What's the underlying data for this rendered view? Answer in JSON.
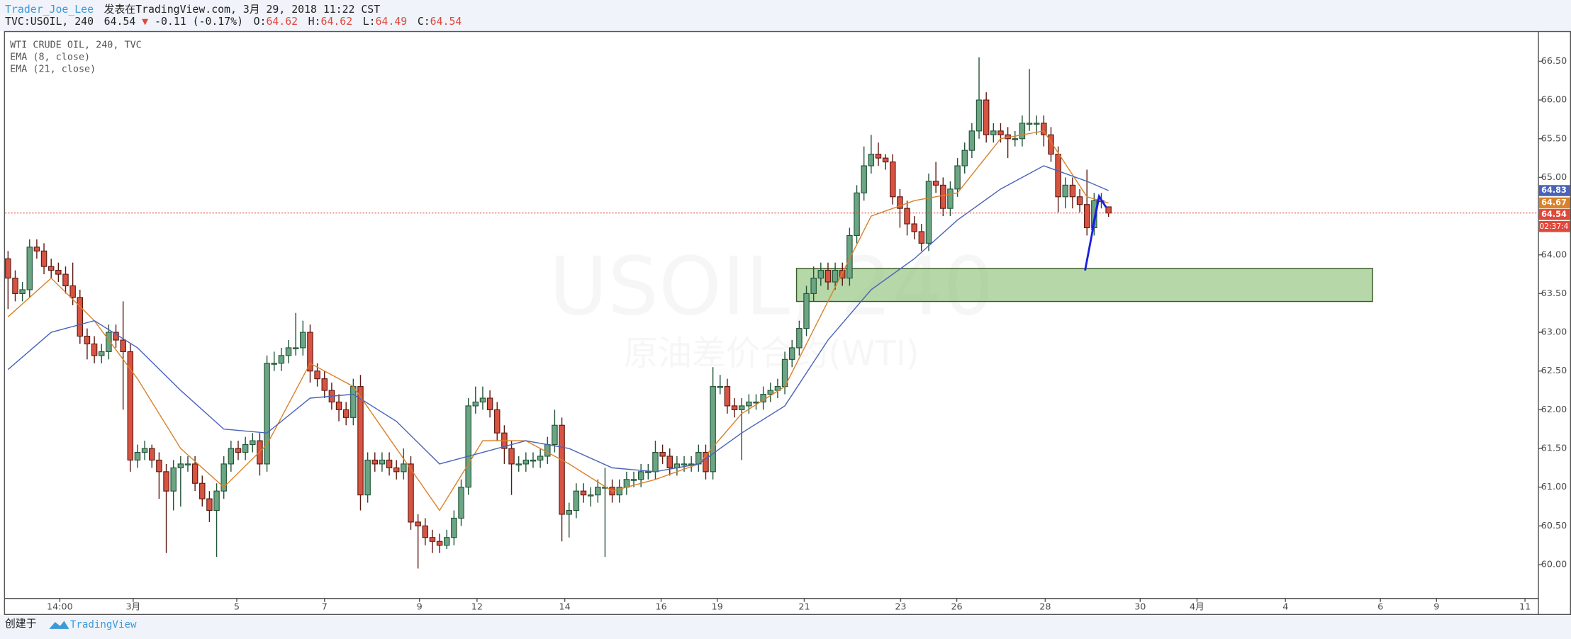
{
  "header": {
    "author": "Trader_Joe_Lee",
    "published": "发表在TradingView.com, 3月 29, 2018 11:22 CST",
    "symbol": "TVC:USOIL, 240",
    "arrow": "▼",
    "change": "-0.11 (-0.17%)",
    "o": "O:",
    "h": "H:",
    "l": "L:",
    "c": "C:"
  },
  "watermark": [
    "USOIL, 240",
    "原油差价合约(WTI)"
  ],
  "footer": {
    "created": "创建于",
    "brand": "TradingView"
  },
  "chart_data": {
    "type": "candlestick",
    "title": "WTI CRUDE OIL, 240, TVC",
    "countdown": "02:37:4",
    "up_color": "#6ba583",
    "up_edge": "#225437",
    "down_color": "#d75442",
    "down_edge": "#5b1a13",
    "last_color": "#e0483a",
    "grid": false,
    "open": [
      63.95,
      63.7,
      63.5,
      63.55,
      64.1,
      64.05,
      63.85,
      63.8,
      63.75,
      63.6,
      63.45,
      62.95,
      62.85,
      62.7,
      62.75,
      63.0,
      62.9,
      62.75,
      61.35,
      61.45,
      61.5,
      61.35,
      61.2,
      60.95,
      61.25,
      61.3,
      61.3,
      61.05,
      60.85,
      60.7,
      60.95,
      61.3,
      61.5,
      61.45,
      61.55,
      61.6,
      61.3,
      62.6,
      62.6,
      62.7,
      62.8,
      62.8,
      63.0,
      62.5,
      62.4,
      62.25,
      62.1,
      62.0,
      61.9,
      62.3,
      60.9,
      61.35,
      61.3,
      61.35,
      61.25,
      61.2,
      61.3,
      60.55,
      60.5,
      60.35,
      60.3,
      60.25,
      60.35,
      60.6,
      61.0,
      62.05,
      62.1,
      62.15,
      62.0,
      61.7,
      61.5,
      61.3,
      61.3,
      61.35,
      61.35,
      61.4,
      61.55,
      61.8,
      60.65,
      60.7,
      60.95,
      60.9,
      60.9,
      61.0,
      61.0,
      60.9,
      61.0,
      61.1,
      61.1,
      61.2,
      61.2,
      61.45,
      61.4,
      61.25,
      61.3,
      61.3,
      61.3,
      61.45,
      61.2,
      62.3,
      62.3,
      62.05,
      62.0,
      62.05,
      62.1,
      62.1,
      62.2,
      62.25,
      62.3,
      62.65,
      62.8,
      63.05,
      63.5,
      63.7,
      63.8,
      63.65,
      63.8,
      63.7,
      64.25,
      64.8,
      65.15,
      65.3,
      65.25,
      65.2,
      64.75,
      64.6,
      64.4,
      64.3,
      64.15,
      64.95,
      64.9,
      64.6,
      64.85,
      65.15,
      65.35,
      65.6,
      66.0,
      65.55,
      65.6,
      65.55,
      65.5,
      65.5,
      65.7,
      65.7,
      65.7,
      65.55,
      65.3,
      64.75,
      64.9,
      64.75,
      64.65,
      64.35,
      64.7,
      64.62
    ],
    "high": [
      64.05,
      63.8,
      63.65,
      64.2,
      64.2,
      64.15,
      63.95,
      63.9,
      63.85,
      63.9,
      63.55,
      63.05,
      62.95,
      62.85,
      63.1,
      63.1,
      63.4,
      62.85,
      61.55,
      61.6,
      61.55,
      61.45,
      61.3,
      61.35,
      61.4,
      61.4,
      61.4,
      61.15,
      60.95,
      61.05,
      61.4,
      61.6,
      61.6,
      61.65,
      61.7,
      61.7,
      62.7,
      62.75,
      62.8,
      62.9,
      63.25,
      63.15,
      63.1,
      62.6,
      62.5,
      62.35,
      62.2,
      62.1,
      62.4,
      62.45,
      61.45,
      61.45,
      61.45,
      61.45,
      61.35,
      61.5,
      61.4,
      60.65,
      60.6,
      60.45,
      60.4,
      60.45,
      60.7,
      61.1,
      62.15,
      62.3,
      62.3,
      62.25,
      62.1,
      61.8,
      61.6,
      61.4,
      61.45,
      61.45,
      61.5,
      61.65,
      62.0,
      61.9,
      60.8,
      61.05,
      61.05,
      61.0,
      61.1,
      61.25,
      61.1,
      61.1,
      61.2,
      61.2,
      61.3,
      61.3,
      61.6,
      61.55,
      61.5,
      61.4,
      61.4,
      61.4,
      61.55,
      61.55,
      62.55,
      62.45,
      62.4,
      62.15,
      62.15,
      62.2,
      62.2,
      62.3,
      62.35,
      62.4,
      62.75,
      62.9,
      63.15,
      63.6,
      63.85,
      63.9,
      63.9,
      63.9,
      63.9,
      64.35,
      64.9,
      65.4,
      65.55,
      65.45,
      65.3,
      65.3,
      64.85,
      64.7,
      64.5,
      64.4,
      65.05,
      65.2,
      65.0,
      64.95,
      65.25,
      65.45,
      65.7,
      66.55,
      66.1,
      65.7,
      65.7,
      65.65,
      65.6,
      65.8,
      66.4,
      65.8,
      65.8,
      65.65,
      65.4,
      65.0,
      65.0,
      64.85,
      65.1,
      64.8,
      64.8,
      64.62
    ],
    "low": [
      63.3,
      63.4,
      63.4,
      63.45,
      63.95,
      63.75,
      63.7,
      63.65,
      63.5,
      63.35,
      62.85,
      62.65,
      62.6,
      62.6,
      62.65,
      62.8,
      62.0,
      61.2,
      61.25,
      61.35,
      61.25,
      60.85,
      60.15,
      60.7,
      60.75,
      61.2,
      60.95,
      60.75,
      60.55,
      60.1,
      60.85,
      61.2,
      61.35,
      61.35,
      61.45,
      61.15,
      61.2,
      62.5,
      62.5,
      62.6,
      62.7,
      62.7,
      62.35,
      62.3,
      62.15,
      62.0,
      61.85,
      61.8,
      61.8,
      60.7,
      60.8,
      61.2,
      61.2,
      61.15,
      61.1,
      61.1,
      60.45,
      59.95,
      60.25,
      60.15,
      60.15,
      60.2,
      60.25,
      60.5,
      60.9,
      61.95,
      62.0,
      61.9,
      61.6,
      61.3,
      60.9,
      61.2,
      61.2,
      61.25,
      61.25,
      61.3,
      61.45,
      60.3,
      60.35,
      60.6,
      60.8,
      60.75,
      60.8,
      60.1,
      60.8,
      60.8,
      60.9,
      61.0,
      61.0,
      61.1,
      61.1,
      61.3,
      61.15,
      61.15,
      61.2,
      61.2,
      61.2,
      61.1,
      61.1,
      62.2,
      61.95,
      61.9,
      61.35,
      61.95,
      62.0,
      62.0,
      62.1,
      62.15,
      62.2,
      62.55,
      62.7,
      62.95,
      63.4,
      63.6,
      63.55,
      63.55,
      63.6,
      63.6,
      64.15,
      64.7,
      65.05,
      65.15,
      65.1,
      64.65,
      64.35,
      64.25,
      64.2,
      64.05,
      64.05,
      64.8,
      64.5,
      64.5,
      64.75,
      65.05,
      65.25,
      65.5,
      65.45,
      65.45,
      65.45,
      65.25,
      65.4,
      65.4,
      65.6,
      65.55,
      65.4,
      65.2,
      64.55,
      64.6,
      64.6,
      64.55,
      64.25,
      64.25,
      64.6,
      64.49
    ],
    "close": [
      63.7,
      63.5,
      63.55,
      64.1,
      64.05,
      63.85,
      63.8,
      63.75,
      63.6,
      63.45,
      62.95,
      62.85,
      62.7,
      62.75,
      63.0,
      62.9,
      62.75,
      61.35,
      61.45,
      61.5,
      61.35,
      61.2,
      60.95,
      61.25,
      61.3,
      61.3,
      61.05,
      60.85,
      60.7,
      60.95,
      61.3,
      61.5,
      61.45,
      61.55,
      61.6,
      61.3,
      62.6,
      62.6,
      62.7,
      62.8,
      62.8,
      63.0,
      62.5,
      62.4,
      62.25,
      62.1,
      62.0,
      61.9,
      62.3,
      60.9,
      61.35,
      61.3,
      61.35,
      61.25,
      61.2,
      61.3,
      60.55,
      60.5,
      60.35,
      60.3,
      60.25,
      60.35,
      60.6,
      61.0,
      62.05,
      62.1,
      62.15,
      62.0,
      61.7,
      61.5,
      61.3,
      61.3,
      61.35,
      61.35,
      61.4,
      61.55,
      61.8,
      60.65,
      60.7,
      60.95,
      60.9,
      60.9,
      61.0,
      61.0,
      60.9,
      61.0,
      61.1,
      61.1,
      61.2,
      61.2,
      61.45,
      61.4,
      61.25,
      61.3,
      61.3,
      61.3,
      61.45,
      61.2,
      62.3,
      62.3,
      62.05,
      62.0,
      62.05,
      62.1,
      62.1,
      62.2,
      62.25,
      62.3,
      62.65,
      62.8,
      63.05,
      63.5,
      63.7,
      63.8,
      63.65,
      63.8,
      63.7,
      64.25,
      64.8,
      65.15,
      65.3,
      65.25,
      65.2,
      64.75,
      64.6,
      64.4,
      64.3,
      64.15,
      64.95,
      64.9,
      64.6,
      64.85,
      65.15,
      65.35,
      65.6,
      66.0,
      65.55,
      65.6,
      65.55,
      65.5,
      65.5,
      65.7,
      65.7,
      65.7,
      65.55,
      65.3,
      64.75,
      64.9,
      64.75,
      64.65,
      64.35,
      64.7,
      64.7,
      64.54
    ],
    "series": [
      {
        "name": "EMA (8, close)",
        "color": "#d9822b",
        "x": [
          0,
          6,
          12,
          18,
          24,
          30,
          36,
          42,
          48,
          54,
          60,
          66,
          72,
          78,
          84,
          90,
          96,
          102,
          108,
          114,
          120,
          126,
          132,
          138,
          144,
          150,
          153
        ],
        "values": [
          63.2,
          63.7,
          63.15,
          62.4,
          61.5,
          61.0,
          61.55,
          62.6,
          62.3,
          61.5,
          60.7,
          61.6,
          61.6,
          61.3,
          60.95,
          61.1,
          61.3,
          61.95,
          62.3,
          63.4,
          64.5,
          64.7,
          64.8,
          65.5,
          65.6,
          64.75,
          64.67
        ]
      },
      {
        "name": "EMA (21, close)",
        "color": "#4a63b8",
        "x": [
          0,
          6,
          12,
          18,
          24,
          30,
          36,
          42,
          48,
          54,
          60,
          66,
          72,
          78,
          84,
          90,
          96,
          102,
          108,
          114,
          120,
          126,
          132,
          138,
          144,
          150,
          153
        ],
        "values": [
          62.52,
          63.0,
          63.15,
          62.8,
          62.25,
          61.75,
          61.7,
          62.15,
          62.2,
          61.85,
          61.3,
          61.45,
          61.6,
          61.5,
          61.25,
          61.2,
          61.3,
          61.7,
          62.05,
          62.9,
          63.55,
          63.95,
          64.45,
          64.85,
          65.15,
          64.95,
          64.83
        ]
      }
    ],
    "xlim": [
      -0.42,
      212.7
    ],
    "xticks": [
      {
        "value": 7.2,
        "label": "14:00"
      },
      {
        "value": 17.4,
        "label": "3月"
      },
      {
        "value": 31.8,
        "label": "5"
      },
      {
        "value": 44.0,
        "label": "7"
      },
      {
        "value": 57.2,
        "label": "9"
      },
      {
        "value": 65.2,
        "label": "12"
      },
      {
        "value": 77.4,
        "label": "14"
      },
      {
        "value": 90.8,
        "label": "16"
      },
      {
        "value": 98.6,
        "label": "19"
      },
      {
        "value": 110.7,
        "label": "21"
      },
      {
        "value": 124.1,
        "label": "23"
      },
      {
        "value": 131.9,
        "label": "26"
      },
      {
        "value": 144.2,
        "label": "28"
      },
      {
        "value": 157.4,
        "label": "30"
      },
      {
        "value": 165.3,
        "label": "4月"
      },
      {
        "value": 177.6,
        "label": "4"
      },
      {
        "value": 190.8,
        "label": "6"
      },
      {
        "value": 198.6,
        "label": "9"
      },
      {
        "value": 210.9,
        "label": "11"
      }
    ],
    "ylim": [
      59.57,
      66.89
    ],
    "yticks": [
      {
        "value": 60,
        "label": "60.00"
      },
      {
        "value": 60.5,
        "label": "60.50"
      },
      {
        "value": 61,
        "label": "61.00"
      },
      {
        "value": 61.5,
        "label": "61.50"
      },
      {
        "value": 62,
        "label": "62.00"
      },
      {
        "value": 62.5,
        "label": "62.50"
      },
      {
        "value": 63,
        "label": "63.00"
      },
      {
        "value": 63.5,
        "label": "63.50"
      },
      {
        "value": 64,
        "label": "64.00"
      },
      {
        "value": 64.5,
        "label": "64.50"
      },
      {
        "value": 65,
        "label": "65.00"
      },
      {
        "value": 65.5,
        "label": "65.50"
      },
      {
        "value": 66,
        "label": "66.00"
      },
      {
        "value": 66.5,
        "label": "66.50"
      }
    ]
  }
}
